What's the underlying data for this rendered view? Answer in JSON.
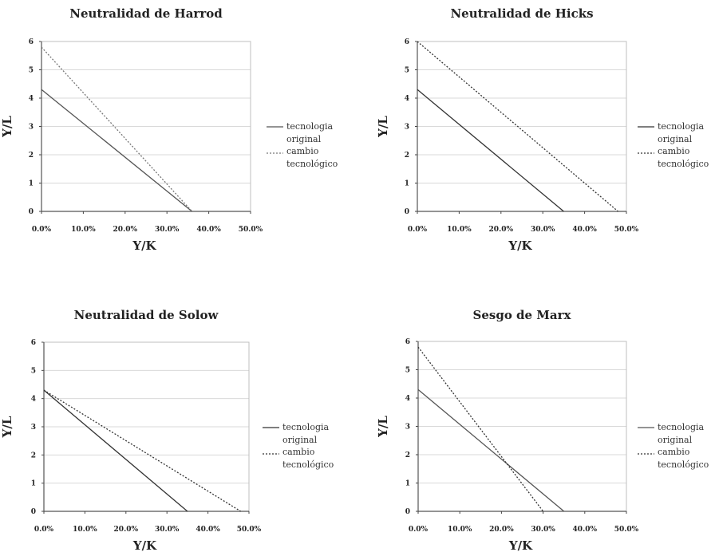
{
  "chart_data": [
    {
      "type": "line",
      "title": "Neutralidad de Harrod",
      "xlabel": "Y/K",
      "ylabel": "Y/L",
      "xlim": [
        0,
        0.5
      ],
      "ylim": [
        0,
        6
      ],
      "x_ticks": [
        "0.0%",
        "10.0%",
        "20.0%",
        "30.0%",
        "40.0%",
        "50.0%"
      ],
      "y_ticks": [
        "0",
        "1",
        "2",
        "3",
        "4",
        "5",
        "6"
      ],
      "grid": true,
      "legend_position": "right",
      "series": [
        {
          "name": "tecnología original",
          "style": "solid",
          "color": "#555555",
          "x": [
            0,
            0.36
          ],
          "y": [
            4.3,
            0
          ]
        },
        {
          "name": "cambio tecnológico",
          "style": "dotted",
          "color": "#777777",
          "x": [
            0,
            0.36
          ],
          "y": [
            5.8,
            0
          ]
        }
      ]
    },
    {
      "type": "line",
      "title": "Neutralidad de Hicks",
      "xlabel": "Y/K",
      "ylabel": "Y/L",
      "xlim": [
        0,
        0.5
      ],
      "ylim": [
        0,
        6
      ],
      "x_ticks": [
        "0.0%",
        "10.0%",
        "20.0%",
        "30.0%",
        "40.0%",
        "50.0%"
      ],
      "y_ticks": [
        "0",
        "1",
        "2",
        "3",
        "4",
        "5",
        "6"
      ],
      "grid": true,
      "legend_position": "right",
      "series": [
        {
          "name": "tecnología original",
          "style": "solid",
          "color": "#333333",
          "x": [
            0,
            0.35
          ],
          "y": [
            4.3,
            0
          ]
        },
        {
          "name": "cambio tecnológico",
          "style": "dotted",
          "color": "#333333",
          "x": [
            0,
            0.48
          ],
          "y": [
            6.0,
            0
          ]
        }
      ]
    },
    {
      "type": "line",
      "title": "Neutralidad de Solow",
      "xlabel": "Y/K",
      "ylabel": "Y/L",
      "xlim": [
        0,
        0.5
      ],
      "ylim": [
        0,
        6
      ],
      "x_ticks": [
        "0.0%",
        "10.0%",
        "20.0%",
        "30.0%",
        "40.0%",
        "50.0%"
      ],
      "y_ticks": [
        "0",
        "1",
        "2",
        "3",
        "4",
        "5",
        "6"
      ],
      "grid": true,
      "legend_position": "right",
      "series": [
        {
          "name": "tecnología original",
          "style": "solid",
          "color": "#333333",
          "x": [
            0,
            0.35
          ],
          "y": [
            4.3,
            0
          ]
        },
        {
          "name": "cambio tecnológico",
          "style": "dotted",
          "color": "#333333",
          "x": [
            0,
            0.48
          ],
          "y": [
            4.3,
            0
          ]
        }
      ]
    },
    {
      "type": "line",
      "title": "Sesgo de Marx",
      "xlabel": "Y/K",
      "ylabel": "Y/L",
      "xlim": [
        0,
        0.5
      ],
      "ylim": [
        0,
        6
      ],
      "x_ticks": [
        "0.0%",
        "10.0%",
        "20.0%",
        "30.0%",
        "40.0%",
        "50.0%"
      ],
      "y_ticks": [
        "0",
        "1",
        "2",
        "3",
        "4",
        "5",
        "6"
      ],
      "grid": true,
      "legend_position": "right",
      "series": [
        {
          "name": "tecnología original",
          "style": "solid",
          "color": "#555555",
          "x": [
            0,
            0.35
          ],
          "y": [
            4.3,
            0
          ]
        },
        {
          "name": "cambio tecnológico",
          "style": "dotted",
          "color": "#333333",
          "x": [
            0,
            0.3
          ],
          "y": [
            5.8,
            0
          ]
        }
      ]
    }
  ],
  "legend_labels": {
    "original_line1": "tecnologia",
    "original_line2": "original",
    "change_line1": "cambio",
    "change_line2": "tecnológico"
  }
}
